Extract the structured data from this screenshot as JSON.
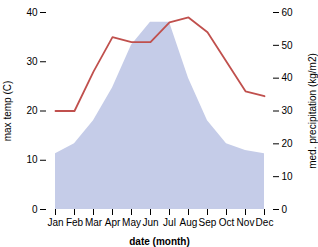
{
  "chart_data": {
    "type": "line",
    "categories": [
      "Jan",
      "Feb",
      "Mar",
      "Apr",
      "May",
      "Jun",
      "Jul",
      "Aug",
      "Sep",
      "Oct",
      "Nov",
      "Dec"
    ],
    "series": [
      {
        "type": "area",
        "axis": "y2",
        "color": "#c5cce8",
        "values": [
          17,
          20,
          27,
          37,
          50,
          57,
          57,
          40,
          27,
          20,
          18,
          17
        ]
      },
      {
        "type": "line",
        "color": "#c0504d",
        "values": [
          20,
          20,
          28,
          35,
          34,
          34,
          38,
          39,
          36,
          30,
          24,
          23
        ]
      }
    ],
    "xlabel": "date (month)",
    "ylabel": "max temp (C)",
    "y2label": "med. precipitation (kg/m2)",
    "ylim": [
      0,
      40
    ],
    "yticks": [
      0,
      10,
      20,
      30,
      40
    ],
    "y2lim": [
      0,
      60
    ],
    "y2ticks": [
      0,
      10,
      20,
      30,
      40,
      50,
      60
    ]
  }
}
